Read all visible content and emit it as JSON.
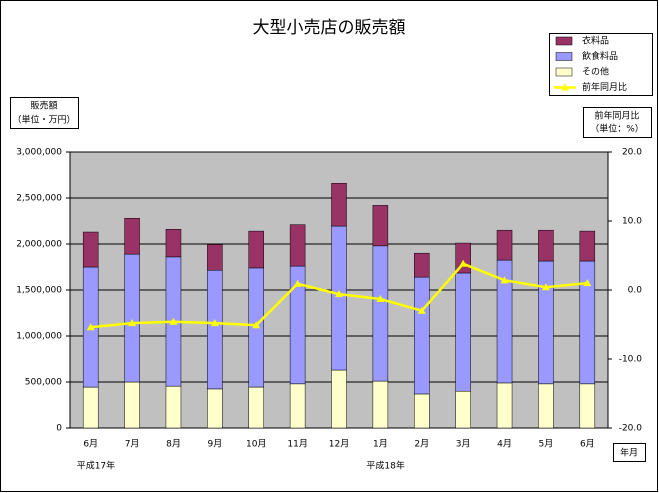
{
  "chart_data": {
    "type": "bar",
    "stacked": true,
    "title": "大型小売店の販売額",
    "ylabel": [
      "販売額",
      "（単位・万円）"
    ],
    "y2label": [
      "前年同月比",
      "（単位：%）"
    ],
    "xlabel": "年月",
    "annotations": [
      {
        "text": "平成17年",
        "category": 0
      },
      {
        "text": "平成18年",
        "category": 7
      }
    ],
    "categories": [
      "6月",
      "7月",
      "8月",
      "9月",
      "10月",
      "11月",
      "12月",
      "1月",
      "2月",
      "3月",
      "4月",
      "5月",
      "6月"
    ],
    "series": [
      {
        "name": "衣料品",
        "color": "#993366",
        "values": [
          380000,
          390000,
          300000,
          280000,
          400000,
          450000,
          465000,
          440000,
          260000,
          325000,
          325000,
          335000,
          325000
        ]
      },
      {
        "name": "飲食料品",
        "color": "#9999ff",
        "values": [
          1305000,
          1390000,
          1405000,
          1290000,
          1295000,
          1280000,
          1565000,
          1470000,
          1270000,
          1285000,
          1335000,
          1335000,
          1335000
        ]
      },
      {
        "name": "その他",
        "color": "#ffffcc",
        "values": [
          445000,
          500000,
          455000,
          425000,
          445000,
          480000,
          630000,
          510000,
          370000,
          400000,
          490000,
          480000,
          480000
        ]
      },
      {
        "name": "前年同月比",
        "color": "#ffff00",
        "type": "line",
        "axis": "y2",
        "values": [
          -5.4,
          -4.8,
          -4.6,
          -4.8,
          -5.1,
          0.9,
          -0.6,
          -1.3,
          -3.0,
          3.8,
          1.4,
          0.4,
          1.0
        ]
      }
    ],
    "ylim": [
      0,
      3000000
    ],
    "yticks": [
      0,
      {
        "value": 500000,
        "label": "500,000"
      },
      {
        "value": 1000000,
        "label": "1,000,000"
      },
      {
        "value": 1500000,
        "label": "1,500,000"
      },
      {
        "value": 2000000,
        "label": "2,000,000"
      },
      {
        "value": 2500000,
        "label": "2,500,000"
      },
      {
        "value": 3000000,
        "label": "3,000,000"
      }
    ],
    "y2lim": [
      -20,
      20
    ],
    "y2ticks": [
      {
        "value": -20,
        "label": "-20.0"
      },
      {
        "value": -10,
        "label": "-10.0"
      },
      {
        "value": 0,
        "label": "0.0"
      },
      {
        "value": 10,
        "label": "10.0"
      },
      {
        "value": 20,
        "label": "20.0"
      }
    ],
    "grid": true,
    "plot_background": "#c0c0c0",
    "legend": "top-right"
  }
}
